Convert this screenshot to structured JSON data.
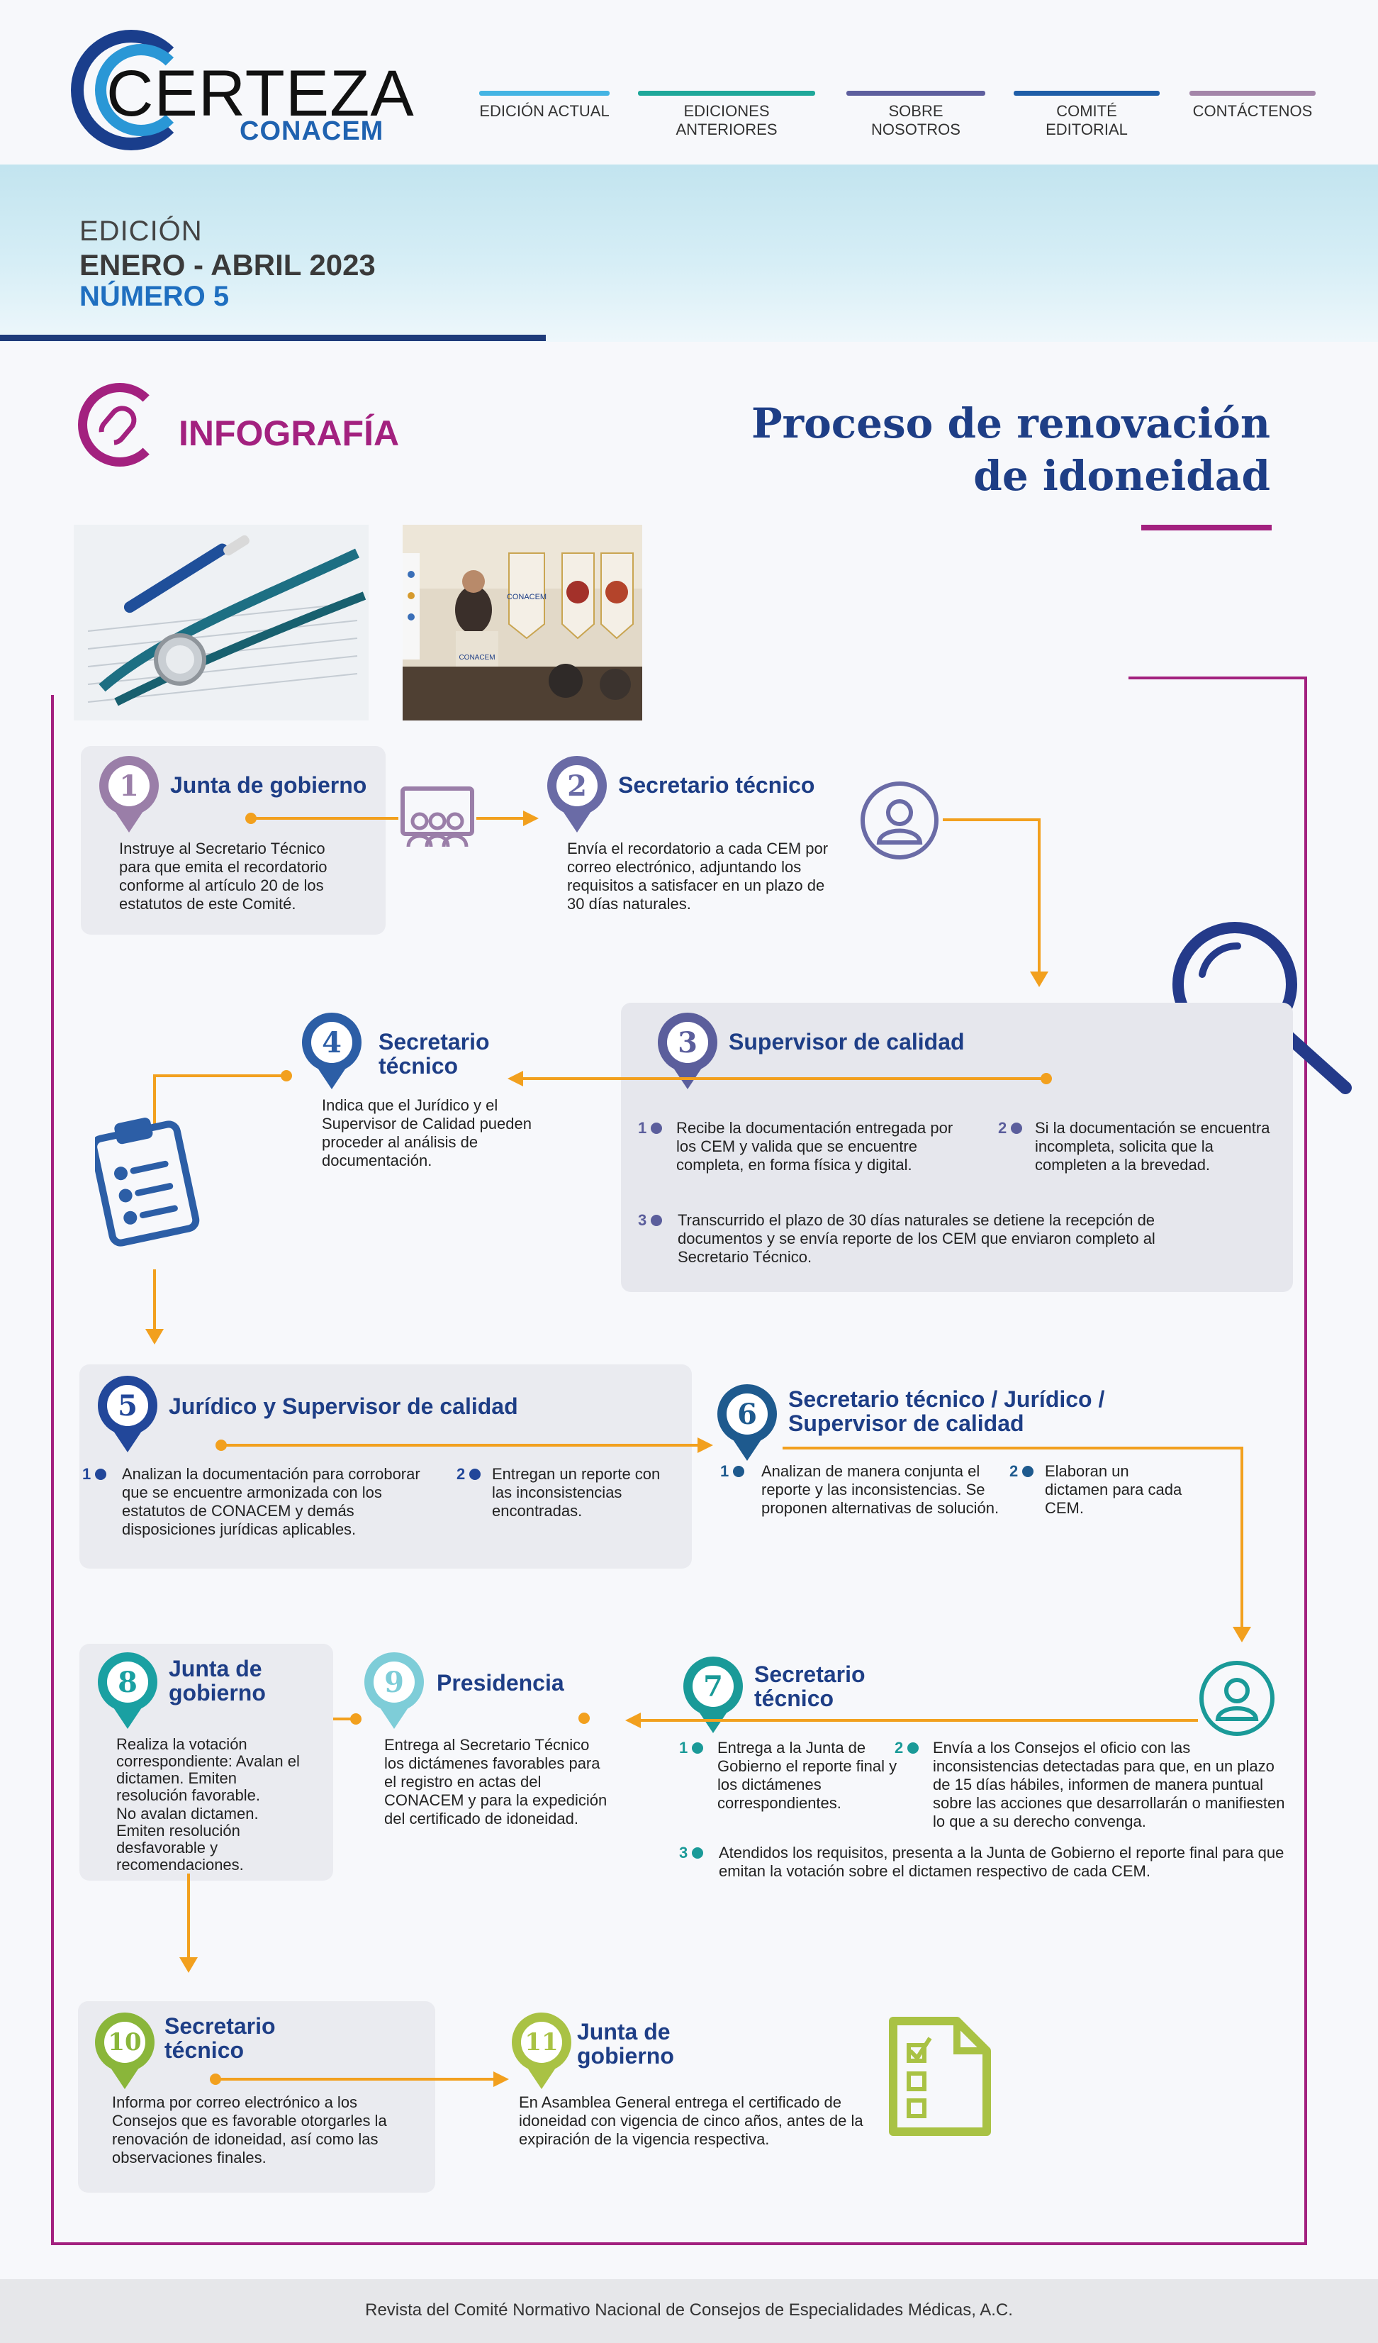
{
  "header": {
    "logo_word": "CERTEZA",
    "logo_sub": "CONACEM",
    "nav": [
      {
        "label": "EDICIÓN ACTUAL",
        "color": "#44b4e3"
      },
      {
        "label": "EDICIONES ANTERIORES",
        "color": "#1fa89a"
      },
      {
        "label": "SOBRE NOSOTROS",
        "color": "#5e5f9e"
      },
      {
        "label": "COMITÉ EDITORIAL",
        "color": "#1f5ea8"
      },
      {
        "label": "CONTÁCTENOS",
        "color": "#a385a9"
      }
    ]
  },
  "edition": {
    "label": "EDICIÓN",
    "period": "ENERO - ABRIL 2023",
    "number": "NÚMERO 5"
  },
  "section": {
    "label": "INFOGRAFÍA",
    "title_line1": "Proceso de renovación",
    "title_line2": "de idoneidad"
  },
  "photo2_banner": "CONACEM",
  "steps": {
    "s1": {
      "num": "1",
      "title": "Junta de gobierno",
      "text": "Instruye al Secretario Técnico para que emita el recordatorio conforme al artículo 20 de los estatutos de este Comité.",
      "color": "#9a7ea8"
    },
    "s2": {
      "num": "2",
      "title": "Secretario técnico",
      "text": "Envía el recordatorio a cada CEM por correo electrónico, adjuntando los requisitos a satisfacer en un plazo de 30 días naturales.",
      "color": "#6a6ba6"
    },
    "s3": {
      "num": "3",
      "title": "Supervisor de calidad",
      "color": "#5b5e9c",
      "items": [
        {
          "n": "1",
          "text": "Recibe la documentación entregada por los CEM y valida que se encuentre completa, en forma física y digital."
        },
        {
          "n": "2",
          "text": "Si la documentación se encuentra incompleta, solicita que la completen a la brevedad."
        },
        {
          "n": "3",
          "text": "Transcurrido el plazo de 30 días naturales se detiene la recepción de documentos y se envía reporte de los CEM que enviaron completo al Secretario Técnico."
        }
      ]
    },
    "s4": {
      "num": "4",
      "title_1": "Secretario",
      "title_2": "técnico",
      "text": "Indica que el Jurídico y el Supervisor de Calidad pueden proceder al análisis de documentación.",
      "color": "#2c5ea6"
    },
    "s5": {
      "num": "5",
      "title": "Jurídico y Supervisor de calidad",
      "color": "#22479a",
      "items": [
        {
          "n": "1",
          "text": "Analizan la documentación para corroborar que se encuentre armonizada con los estatutos de CONACEM y demás disposiciones jurídicas aplicables."
        },
        {
          "n": "2",
          "text": "Entregan un reporte con las inconsistencias encontradas."
        }
      ]
    },
    "s6": {
      "num": "6",
      "title_1": "Secretario técnico / Jurídico /",
      "title_2": "Supervisor de calidad",
      "color": "#1e5a8e",
      "items": [
        {
          "n": "1",
          "text": "Analizan de manera conjunta el reporte y las inconsistencias. Se proponen alternativas de solución."
        },
        {
          "n": "2",
          "text": "Elaboran un dictamen para cada CEM."
        }
      ]
    },
    "s7": {
      "num": "7",
      "title_1": "Secretario",
      "title_2": "técnico",
      "color": "#1a9a98",
      "items": [
        {
          "n": "1",
          "text": "Entrega a la Junta de Gobierno el reporte final y los dictámenes correspondientes."
        },
        {
          "n": "2",
          "text": "Envía a los Consejos el oficio con las inconsistencias detectadas para que, en un plazo de 15 días hábiles, informen de manera puntual sobre las acciones que desarrollarán o manifiesten lo que a su derecho convenga."
        },
        {
          "n": "3",
          "text": "Atendidos los requisitos, presenta a la Junta de Gobierno el reporte final para que emitan la votación sobre el dictamen respectivo de cada CEM."
        }
      ]
    },
    "s8": {
      "num": "8",
      "title_1": "Junta de",
      "title_2": "gobierno",
      "text_1": "Realiza la votación correspondiente: Avalan el dictamen. Emiten resolución favorable.",
      "text_2": "No avalan dictamen. Emiten resolución desfavorable y recomendaciones.",
      "color": "#1aa0a2"
    },
    "s9": {
      "num": "9",
      "title": "Presidencia",
      "text": "Entrega al Secretario Técnico los dictámenes favorables para el registro en actas del CONACEM y para la expedición del certificado de idoneidad.",
      "color": "#7ecdd8"
    },
    "s10": {
      "num": "10",
      "title_1": "Secretario",
      "title_2": "técnico",
      "text": "Informa por correo electrónico a los Consejos que es favorable otorgarles la renovación de idoneidad, así como las observaciones finales.",
      "color": "#8ab63a"
    },
    "s11": {
      "num": "11",
      "title_1": "Junta de",
      "title_2": "gobierno",
      "text": "En Asamblea General entrega el certificado de idoneidad con vigencia de cinco años, antes de la expiración de la vigencia respectiva.",
      "color": "#a9c244"
    }
  },
  "footer": {
    "text": "Revista del Comité Normativo Nacional de Consejos de Especialidades Médicas, A.C."
  },
  "colors": {
    "accent_magenta": "#a3217f",
    "title_navy": "#1e3e86",
    "connector_orange": "#f2a01e"
  }
}
